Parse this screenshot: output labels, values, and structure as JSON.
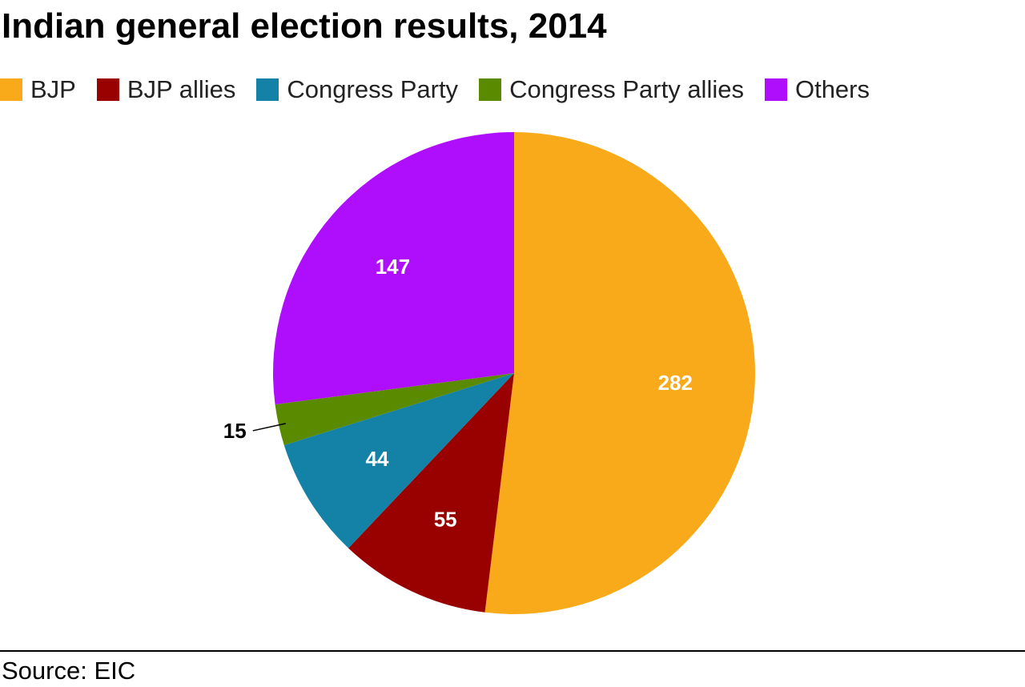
{
  "chart_data": {
    "type": "pie",
    "title": "Indian general election results, 2014",
    "categories": [
      "BJP",
      "BJP allies",
      "Congress Party",
      "Congress Party allies",
      "Others"
    ],
    "values": [
      282,
      55,
      44,
      15,
      147
    ],
    "value_labels": [
      "282",
      "55",
      "44",
      "15",
      "147"
    ],
    "colors": [
      "#F9AA1B",
      "#990000",
      "#1482A6",
      "#5A8A00",
      "#AF0EFD"
    ],
    "legend_position": "top",
    "start_angle": "top (12 o'clock)",
    "direction": "clockwise"
  },
  "source": "Source: EIC"
}
